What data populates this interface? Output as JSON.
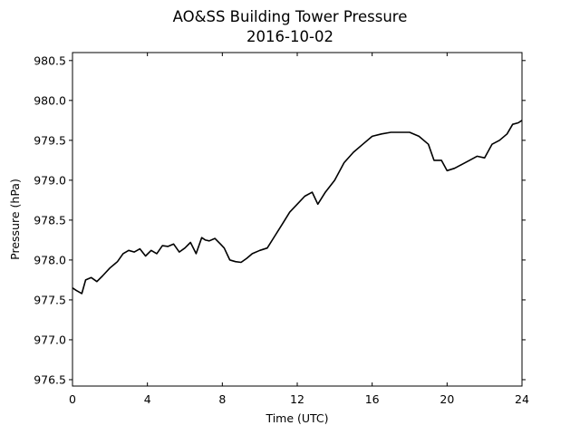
{
  "chart_data": {
    "type": "line",
    "title": "AO&SS Building Tower Pressure",
    "subtitle": "2016-10-02",
    "xlabel": "Time (UTC)",
    "ylabel": "Pressure (hPa)",
    "xlim": [
      0,
      24
    ],
    "ylim": [
      976.42,
      980.6
    ],
    "xticks": [
      0,
      4,
      8,
      12,
      16,
      20,
      24
    ],
    "yticks": [
      976.5,
      977.0,
      977.5,
      978.0,
      978.5,
      979.0,
      979.5,
      980.0,
      980.5
    ],
    "ytick_labels": [
      "976.5",
      "977.0",
      "977.5",
      "978.0",
      "978.5",
      "979.0",
      "979.5",
      "980.0",
      "980.5"
    ],
    "grid": false,
    "series": [
      {
        "color": "#000000",
        "x": [
          0.0,
          0.2,
          0.5,
          0.7,
          1.0,
          1.3,
          1.6,
          2.0,
          2.4,
          2.7,
          3.0,
          3.3,
          3.6,
          3.9,
          4.2,
          4.5,
          4.8,
          5.1,
          5.4,
          5.7,
          6.0,
          6.3,
          6.6,
          6.9,
          7.1,
          7.3,
          7.6,
          7.9,
          8.1,
          8.4,
          8.7,
          9.0,
          9.3,
          9.6,
          10.0,
          10.4,
          10.8,
          11.2,
          11.6,
          12.0,
          12.4,
          12.8,
          13.1,
          13.5,
          14.0,
          14.5,
          15.0,
          15.5,
          16.0,
          16.5,
          17.0,
          17.5,
          18.0,
          18.5,
          19.0,
          19.3,
          19.7,
          20.0,
          20.4,
          20.8,
          21.2,
          21.6,
          22.0,
          22.4,
          22.8,
          23.2,
          23.5,
          23.8,
          24.0
        ],
        "y": [
          977.65,
          977.62,
          977.58,
          977.75,
          977.78,
          977.73,
          977.8,
          977.9,
          977.98,
          978.08,
          978.12,
          978.1,
          978.14,
          978.05,
          978.12,
          978.08,
          978.18,
          978.17,
          978.2,
          978.1,
          978.15,
          978.22,
          978.08,
          978.28,
          978.25,
          978.24,
          978.27,
          978.2,
          978.15,
          978.0,
          977.98,
          977.97,
          978.02,
          978.08,
          978.12,
          978.15,
          978.3,
          978.45,
          978.6,
          978.7,
          978.8,
          978.85,
          978.7,
          978.85,
          979.0,
          979.22,
          979.35,
          979.45,
          979.55,
          979.58,
          979.6,
          979.6,
          979.6,
          979.55,
          979.45,
          979.25,
          979.25,
          979.12,
          979.15,
          979.2,
          979.25,
          979.3,
          979.28,
          979.45,
          979.5,
          979.58,
          979.7,
          979.72,
          979.75
        ]
      }
    ]
  }
}
